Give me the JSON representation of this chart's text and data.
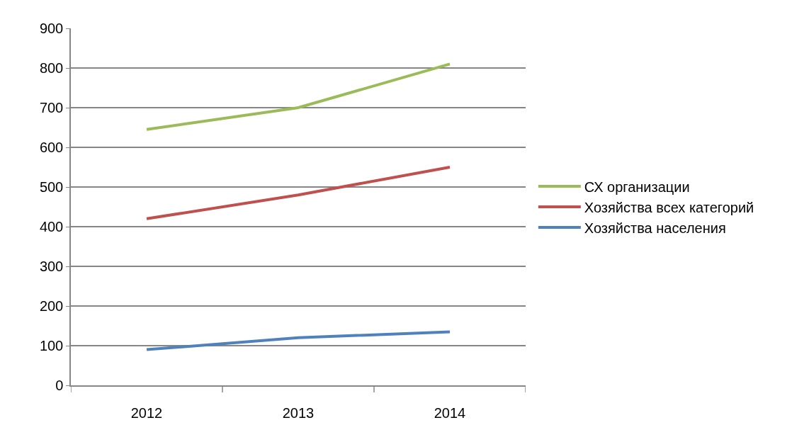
{
  "chart_data": {
    "type": "line",
    "categories": [
      "2012",
      "2013",
      "2014"
    ],
    "series": [
      {
        "name": "СХ организации",
        "color": "#9bbb59",
        "values": [
          645,
          700,
          810
        ]
      },
      {
        "name": "Хозяйства всех категорий",
        "color": "#c0504d",
        "values": [
          420,
          480,
          550
        ]
      },
      {
        "name": "Хозяйства населения",
        "color": "#4f81bd",
        "values": [
          90,
          120,
          135
        ]
      }
    ],
    "ylim": [
      0,
      900
    ],
    "yticks": [
      0,
      100,
      200,
      300,
      400,
      500,
      600,
      700,
      800,
      900
    ],
    "grid": "y",
    "legend": "right",
    "marker": "none",
    "line_style": "solid"
  }
}
